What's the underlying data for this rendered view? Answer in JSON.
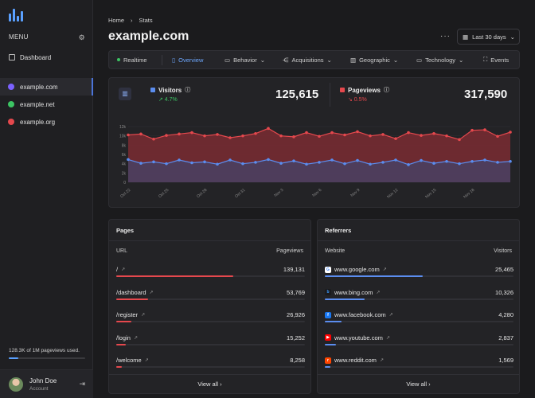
{
  "sidebar": {
    "menu_label": "MENU",
    "dashboard_label": "Dashboard",
    "sites": [
      {
        "label": "example.com",
        "color": "#7b61ff",
        "active": true
      },
      {
        "label": "example.net",
        "color": "#3cc463",
        "active": false
      },
      {
        "label": "example.org",
        "color": "#e5484d",
        "active": false
      }
    ],
    "usage_text": "128.3K of 1M pageviews used.",
    "usage_fraction": 0.128,
    "user": {
      "name": "John Doe",
      "role": "Account"
    }
  },
  "header": {
    "breadcrumb": [
      "Home",
      "Stats"
    ],
    "title": "example.com",
    "more_icon": "ellipsis-icon",
    "range_label": "Last 30 days"
  },
  "tabs": [
    {
      "label": "Realtime",
      "icon": "live-dot",
      "active": false
    },
    {
      "label": "Overview",
      "icon": "panel-icon",
      "active": true
    },
    {
      "label": "Behavior",
      "icon": "behavior-icon",
      "active": false
    },
    {
      "label": "Acquisitions",
      "icon": "acquisitions-icon",
      "active": false
    },
    {
      "label": "Geographic",
      "icon": "geographic-icon",
      "active": false
    },
    {
      "label": "Technology",
      "icon": "technology-icon",
      "active": false
    },
    {
      "label": "Events",
      "icon": "events-icon",
      "active": false
    }
  ],
  "metrics": {
    "visitors": {
      "label": "Visitors",
      "value": "125,615",
      "change": "↗ 4.7%",
      "color": "#5b8def",
      "change_color": "#3cc463"
    },
    "pageviews": {
      "label": "Pageviews",
      "value": "317,590",
      "change": "↘ 0.5%",
      "color": "#e5484d",
      "change_color": "#e5484d"
    }
  },
  "chart_data": {
    "type": "area",
    "y_ticks": [
      "12k",
      "10k",
      "8k",
      "6k",
      "4k",
      "2k",
      "0"
    ],
    "ylim": [
      0,
      12000
    ],
    "x_tick_labels": [
      "Oct 22",
      "Oct 25",
      "Oct 28",
      "Oct 31",
      "Nov 3",
      "Nov 6",
      "Nov 9",
      "Nov 12",
      "Nov 15",
      "Nov 18"
    ],
    "x_count": 31,
    "series": [
      {
        "name": "Pageviews",
        "color": "#e5484d",
        "values": [
          10200,
          10400,
          9300,
          10100,
          10400,
          10700,
          10000,
          10300,
          9600,
          10000,
          10500,
          11600,
          10000,
          9800,
          10700,
          9900,
          10700,
          10200,
          10900,
          10000,
          10300,
          9400,
          10700,
          10100,
          10500,
          10000,
          9200,
          11200,
          11300,
          9900,
          10800
        ]
      },
      {
        "name": "Visitors",
        "color": "#5b8def",
        "values": [
          4900,
          4100,
          4400,
          4000,
          4800,
          4200,
          4400,
          3900,
          4800,
          4000,
          4300,
          4900,
          4100,
          4600,
          3900,
          4300,
          4800,
          4000,
          4700,
          3900,
          4300,
          4800,
          3800,
          4700,
          4100,
          4500,
          4000,
          4500,
          4800,
          4300,
          4500
        ]
      }
    ]
  },
  "pages_card": {
    "title": "Pages",
    "col_left": "URL",
    "col_right": "Pageviews",
    "bar_color": "#e5484d",
    "rows": [
      {
        "label": "/",
        "value": "139,131",
        "fraction": 0.62
      },
      {
        "label": "/dashboard",
        "value": "53,769",
        "fraction": 0.17
      },
      {
        "label": "/register",
        "value": "26,926",
        "fraction": 0.08
      },
      {
        "label": "/login",
        "value": "15,252",
        "fraction": 0.05
      },
      {
        "label": "/welcome",
        "value": "8,258",
        "fraction": 0.03
      }
    ],
    "footer": "View all  ›"
  },
  "referrers_card": {
    "title": "Referrers",
    "col_left": "Website",
    "col_right": "Visitors",
    "bar_color": "#5b8def",
    "rows": [
      {
        "label": "www.google.com",
        "value": "25,465",
        "fraction": 0.52,
        "icon": "google-icon",
        "glyph": "G",
        "icon_bg": "#ffffff",
        "icon_fg": "#4285f4"
      },
      {
        "label": "www.bing.com",
        "value": "10,326",
        "fraction": 0.21,
        "icon": "bing-icon",
        "glyph": "b",
        "icon_bg": "#1b1b1d",
        "icon_fg": "#3b9bff"
      },
      {
        "label": "www.facebook.com",
        "value": "4,280",
        "fraction": 0.09,
        "icon": "facebook-icon",
        "glyph": "f",
        "icon_bg": "#1877f2",
        "icon_fg": "#ffffff"
      },
      {
        "label": "www.youtube.com",
        "value": "2,837",
        "fraction": 0.06,
        "icon": "youtube-icon",
        "glyph": "▶",
        "icon_bg": "#ff0000",
        "icon_fg": "#ffffff"
      },
      {
        "label": "www.reddit.com",
        "value": "1,569",
        "fraction": 0.03,
        "icon": "reddit-icon",
        "glyph": "r",
        "icon_bg": "#ff4500",
        "icon_fg": "#ffffff"
      }
    ],
    "footer": "View all  ›"
  }
}
